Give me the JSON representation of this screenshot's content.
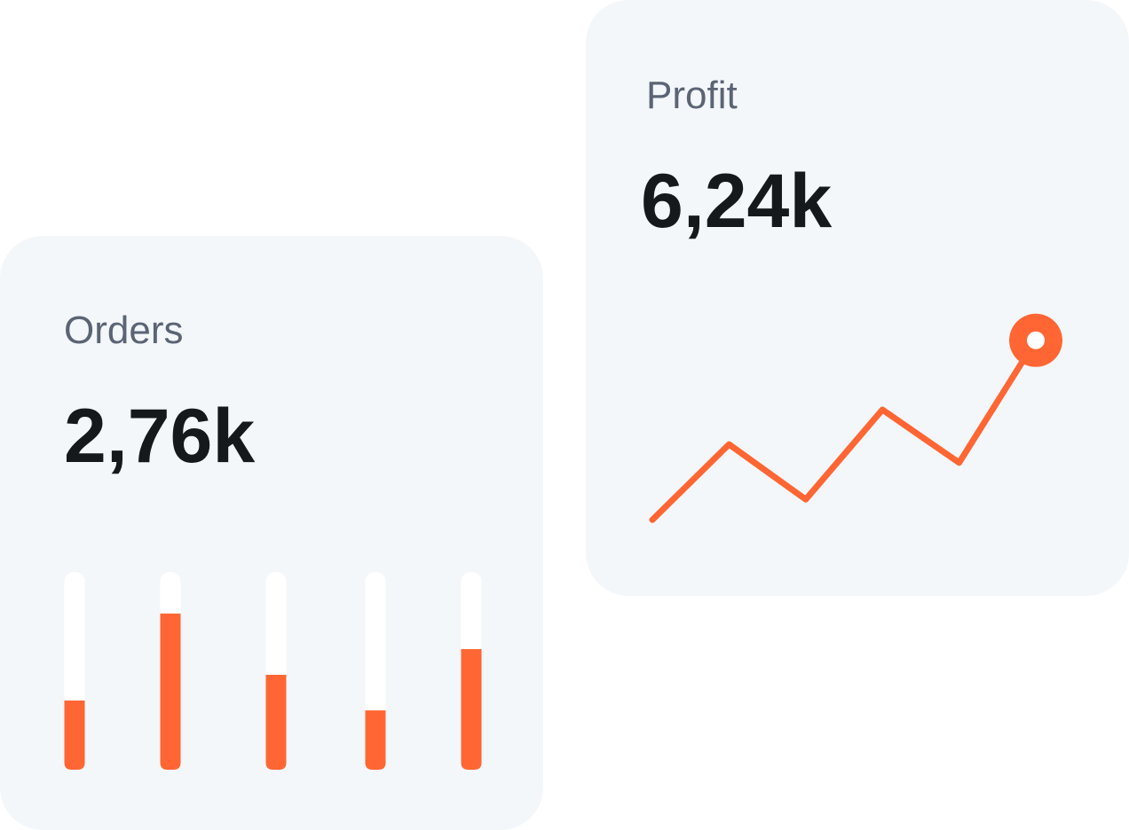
{
  "chart_data": [
    {
      "type": "bar",
      "title": "Orders",
      "subtitle": "2,76k",
      "categories": [
        null,
        null,
        null,
        null,
        null
      ],
      "values": [
        35,
        79,
        48,
        30,
        61
      ],
      "color": "#ff6633",
      "ylim": [
        0,
        100
      ]
    },
    {
      "type": "line",
      "title": "Profit",
      "subtitle": "6,24k",
      "categories": [
        null,
        null,
        null,
        null,
        null,
        null
      ],
      "values": [
        6,
        43,
        16,
        60,
        34,
        94
      ],
      "color": "#ff6633",
      "ylim": [
        0,
        100
      ]
    }
  ]
}
